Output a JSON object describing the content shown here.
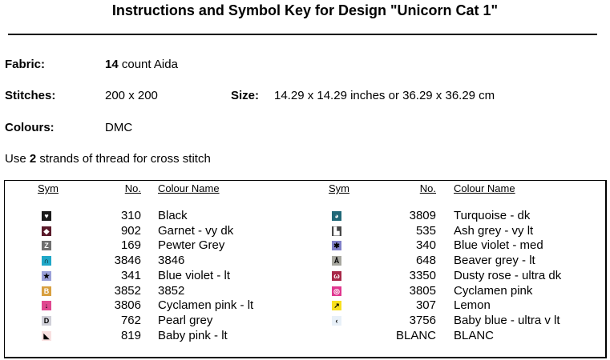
{
  "title": "Instructions and Symbol Key for Design \"Unicorn Cat 1\"",
  "fabric": {
    "label": "Fabric:",
    "count": "14",
    "rest": "count Aida"
  },
  "stitches": {
    "label": "Stitches:",
    "value": "200 x 200"
  },
  "size": {
    "label": "Size:",
    "value": "14.29 x 14.29 inches or 36.29 x 36.29 cm"
  },
  "colours": {
    "label": "Colours:",
    "value": "DMC"
  },
  "strands": {
    "pre": "Use",
    "count": "2",
    "post": "strands of thread for cross stitch"
  },
  "headers": {
    "sym": "Sym",
    "no": "No.",
    "name": "Colour Name"
  },
  "left": [
    {
      "no": "310",
      "name": "Black",
      "color": "#1a1a1a",
      "glyph": "♥"
    },
    {
      "no": "902",
      "name": "Garnet -  vy dk",
      "color": "#5a1a2a",
      "glyph": "◆"
    },
    {
      "no": "169",
      "name": "Pewter Grey",
      "color": "#707070",
      "glyph": "Z"
    },
    {
      "no": "3846",
      "name": "3846",
      "color": "#20a8c8",
      "glyph": "∩",
      "fg": "#000"
    },
    {
      "no": "341",
      "name": "Blue violet -  lt",
      "color": "#9aa0d8",
      "glyph": "★",
      "fg": "#000"
    },
    {
      "no": "3852",
      "name": "3852",
      "color": "#d8a040",
      "glyph": "B"
    },
    {
      "no": "3806",
      "name": "Cyclamen pink -  lt",
      "color": "#e04890",
      "glyph": "↓",
      "fg": "#000"
    },
    {
      "no": "762",
      "name": "Pearl grey",
      "color": "#d0d0d8",
      "glyph": "D",
      "fg": "#000"
    },
    {
      "no": "819",
      "name": "Baby pink -  lt",
      "color": "#f8e0e0",
      "glyph": "◣",
      "fg": "#000"
    }
  ],
  "right": [
    {
      "no": "3809",
      "name": "Turquoise -  dk",
      "color": "#206878",
      "glyph": "◕"
    },
    {
      "no": "535",
      "name": "Ash grey -  vy lt",
      "color": "#484848",
      "glyph": "▙"
    },
    {
      "no": "340",
      "name": "Blue violet -  med",
      "color": "#8080c8",
      "glyph": "✱",
      "fg": "#000"
    },
    {
      "no": "648",
      "name": "Beaver grey -  lt",
      "color": "#a8a8a0",
      "glyph": "Å",
      "fg": "#000"
    },
    {
      "no": "3350",
      "name": "Dusty rose -  ultra dk",
      "color": "#a82848",
      "glyph": "ω"
    },
    {
      "no": "3805",
      "name": "Cyclamen pink",
      "color": "#e03890",
      "glyph": "◎"
    },
    {
      "no": "307",
      "name": "Lemon",
      "color": "#f8e020",
      "glyph": "↗",
      "fg": "#000"
    },
    {
      "no": "3756",
      "name": "Baby blue -  ultra v lt",
      "color": "#e8f0f8",
      "glyph": "‹",
      "fg": "#000"
    },
    {
      "no": "BLANC",
      "name": "BLANC",
      "color": "#ffffff",
      "glyph": ""
    }
  ]
}
